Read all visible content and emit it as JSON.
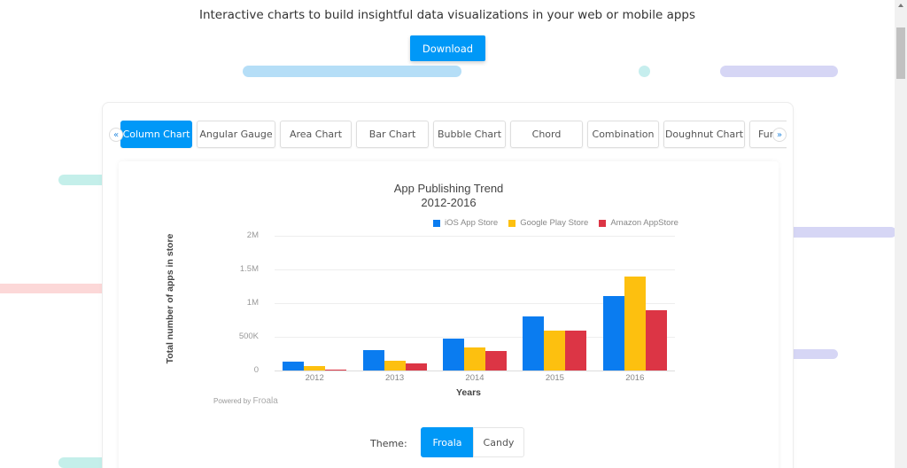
{
  "header": {
    "tagline": "Interactive charts to build insightful data visualizations in your web or mobile apps",
    "download_label": "Download"
  },
  "tabs": {
    "prev_icon": "«",
    "next_icon": "»",
    "items": [
      {
        "label": "Column Chart",
        "active": true
      },
      {
        "label": "Angular Gauge"
      },
      {
        "label": "Area Chart"
      },
      {
        "label": "Bar Chart"
      },
      {
        "label": "Bubble Chart"
      },
      {
        "label": "Chord"
      },
      {
        "label": "Combination"
      },
      {
        "label": "Doughnut Chart"
      },
      {
        "label": "Fur"
      }
    ]
  },
  "chart": {
    "powered_by": "Powered by",
    "powered_brand": "Froala"
  },
  "theme": {
    "label": "Theme:",
    "options": [
      {
        "label": "Froala",
        "active": true
      },
      {
        "label": "Candy"
      }
    ]
  },
  "colors": {
    "accent": "#0098f7",
    "ios": "#0a7cf0",
    "google": "#fdc00f",
    "amazon": "#dc3545"
  },
  "chart_data": {
    "type": "bar",
    "title": "App Publishing Trend",
    "subtitle": "2012-2016",
    "xlabel": "Years",
    "ylabel": "Total number of apps in store",
    "categories": [
      "2012",
      "2013",
      "2014",
      "2015",
      "2016"
    ],
    "yticks": [
      "0",
      "500K",
      "1M",
      "1.5M",
      "2M"
    ],
    "ylim": [
      0,
      2000000
    ],
    "grid": true,
    "legend_position": "top-right",
    "series": [
      {
        "name": "iOS App Store",
        "color": "#0a7cf0",
        "values": [
          130000,
          300000,
          475000,
          800000,
          1100000
        ]
      },
      {
        "name": "Google Play Store",
        "color": "#fdc00f",
        "values": [
          65000,
          150000,
          345000,
          595000,
          1400000
        ]
      },
      {
        "name": "Amazon AppStore",
        "color": "#dc3545",
        "values": [
          10000,
          100000,
          290000,
          595000,
          895000
        ]
      }
    ]
  }
}
